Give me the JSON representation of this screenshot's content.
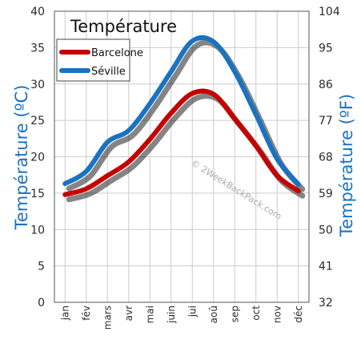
{
  "chart_data": {
    "type": "line",
    "title": "Température",
    "ylabel_left": "Température  (ºC)",
    "ylabel_right": "Température  (ºF)",
    "watermark": "© 2WeekBackPack.com",
    "categories": [
      "jan",
      "fév",
      "mars",
      "avr",
      "mai",
      "juin",
      "jui",
      "aoû",
      "sep",
      "oct",
      "nov",
      "déc"
    ],
    "ylim": [
      0,
      40
    ],
    "ylim_right": [
      32,
      104
    ],
    "yticks_left": [
      "0",
      "5",
      "10",
      "15",
      "20",
      "25",
      "30",
      "35",
      "40"
    ],
    "yticks_right": [
      "32",
      "41",
      "50",
      "59",
      "68",
      "77",
      "86",
      "95",
      "104"
    ],
    "grid": true,
    "legend_position": "top-left",
    "series": [
      {
        "name": "Barcelone",
        "color": "#c40000",
        "values": [
          14.8,
          15.6,
          17.4,
          19.3,
          22.4,
          26.0,
          28.7,
          28.6,
          25.2,
          21.5,
          17.4,
          15.3
        ]
      },
      {
        "name": "Séville",
        "color": "#1a72c2",
        "values": [
          16.3,
          18.0,
          22.0,
          23.6,
          27.3,
          31.7,
          35.9,
          35.8,
          31.7,
          25.8,
          19.7,
          16.2
        ]
      }
    ],
    "colors": {
      "axis_title": "#1a72c2",
      "grid": "#cccccc"
    }
  }
}
